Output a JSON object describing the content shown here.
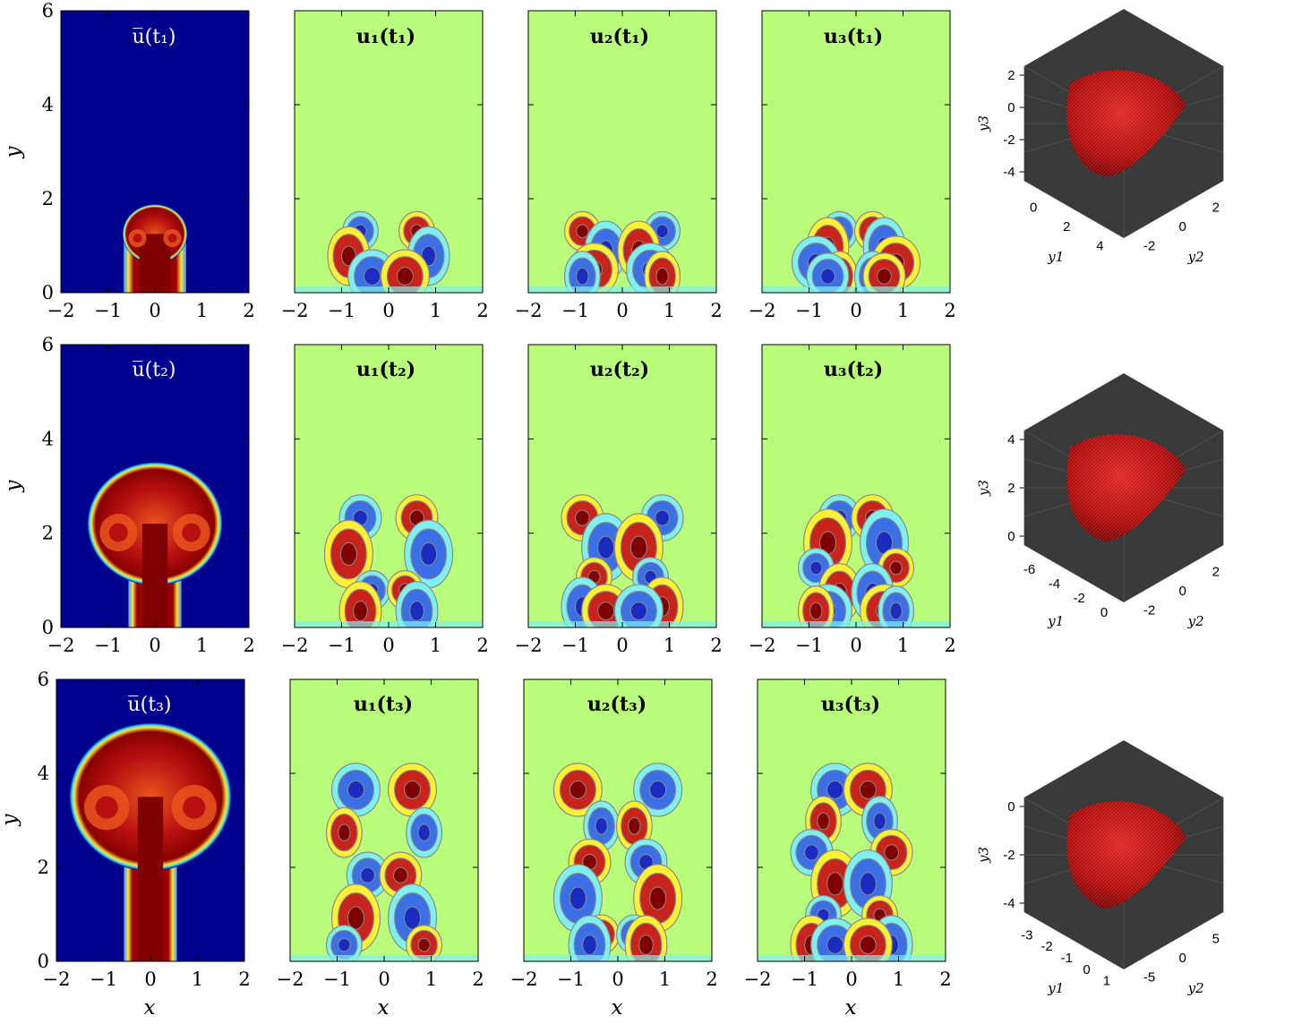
{
  "figure": {
    "xlabel": "x",
    "ylabel": "y",
    "x_ticks": [
      "−2",
      "−1",
      "0",
      "1",
      "2"
    ],
    "y_ticks": [
      "0",
      "2",
      "4",
      "6"
    ],
    "rows": [
      {
        "mean_title": "u̅(t₁)",
        "mode_titles": [
          "u₁(t₁)",
          "u₂(t₁)",
          "u₃(t₁)"
        ],
        "cap_height": 1.85,
        "stem_half_width": 0.55,
        "cap_radius": 0.6,
        "box3d": {
          "z_ticks": [
            "2",
            "0",
            "-2",
            "-4"
          ],
          "left_ticks": [
            "0",
            "2",
            "4"
          ],
          "right_ticks": [
            "2",
            "0",
            "-2"
          ],
          "zlabel": "y3",
          "xlabel": "y1",
          "ylabel": "y2"
        }
      },
      {
        "mean_title": "u̅(t₂)",
        "mode_titles": [
          "u₁(t₂)",
          "u₂(t₂)",
          "u₃(t₂)"
        ],
        "cap_height": 3.45,
        "stem_half_width": 0.45,
        "cap_radius": 1.25,
        "box3d": {
          "z_ticks": [
            "4",
            "2",
            "0"
          ],
          "left_ticks": [
            "-6",
            "-4",
            "-2",
            "0"
          ],
          "right_ticks": [
            "2",
            "0",
            "-2"
          ],
          "zlabel": "y3",
          "xlabel": "y1",
          "ylabel": "y2"
        }
      },
      {
        "mean_title": "u̅(t₃)",
        "mode_titles": [
          "u₁(t₃)",
          "u₂(t₃)",
          "u₃(t₃)"
        ],
        "cap_height": 5.0,
        "stem_half_width": 0.45,
        "cap_radius": 1.5,
        "box3d": {
          "z_ticks": [
            "0",
            "-2",
            "-4"
          ],
          "left_ticks": [
            "-3",
            "-2",
            "-1",
            "0",
            "1"
          ],
          "right_ticks": [
            "5",
            "0",
            "-5"
          ],
          "zlabel": "y3",
          "xlabel": "y1",
          "ylabel": "y2"
        }
      }
    ],
    "colors": {
      "background_mode": "#b8fe7a",
      "background_mean": "#00008f",
      "dark_red": "#7f0000",
      "red": "#c8241c",
      "orange": "#ee9a2e",
      "yellow": "#fef133",
      "cyan": "#7ff0f0",
      "blue": "#3b6fe6",
      "dark_blue": "#1a2bbf",
      "box3d_face": "#3a3a3a",
      "surface_red": "#d01010"
    }
  }
}
